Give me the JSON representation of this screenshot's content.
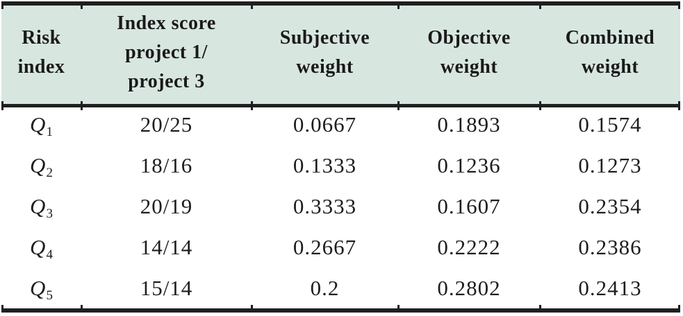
{
  "table": {
    "headers": [
      {
        "label": "Risk\nindex"
      },
      {
        "label": "Index score\nproject 1/\nproject 3"
      },
      {
        "label": "Subjective\nweight"
      },
      {
        "label": "Objective\nweight"
      },
      {
        "label": "Combined\nweight"
      }
    ],
    "rows": [
      {
        "risk": {
          "base": "Q",
          "sub": "1"
        },
        "score": "20/25",
        "subjective": "0.0667",
        "objective": "0.1893",
        "combined": "0.1574"
      },
      {
        "risk": {
          "base": "Q",
          "sub": "2"
        },
        "score": "18/16",
        "subjective": "0.1333",
        "objective": "0.1236",
        "combined": "0.1273"
      },
      {
        "risk": {
          "base": "Q",
          "sub": "3"
        },
        "score": "20/19",
        "subjective": "0.3333",
        "objective": "0.1607",
        "combined": "0.2354"
      },
      {
        "risk": {
          "base": "Q",
          "sub": "4"
        },
        "score": "14/14",
        "subjective": "0.2667",
        "objective": "0.2222",
        "combined": "0.2386"
      },
      {
        "risk": {
          "base": "Q",
          "sub": "5"
        },
        "score": "15/14",
        "subjective": "0.2",
        "objective": "0.2802",
        "combined": "0.2413"
      }
    ]
  },
  "colors": {
    "header_background": "#d8e6e0",
    "rule": "#1f1f1f",
    "text": "#1d1d1d"
  },
  "chart_data": {
    "type": "table",
    "columns": [
      "Risk index",
      "Index score project 1/ project 3",
      "Subjective weight",
      "Objective weight",
      "Combined weight"
    ],
    "rows": [
      [
        "Q1",
        "20/25",
        0.0667,
        0.1893,
        0.1574
      ],
      [
        "Q2",
        "18/16",
        0.1333,
        0.1236,
        0.1273
      ],
      [
        "Q3",
        "20/19",
        0.3333,
        0.1607,
        0.2354
      ],
      [
        "Q4",
        "14/14",
        0.2667,
        0.2222,
        0.2386
      ],
      [
        "Q5",
        "15/14",
        0.2,
        0.2802,
        0.2413
      ]
    ]
  }
}
